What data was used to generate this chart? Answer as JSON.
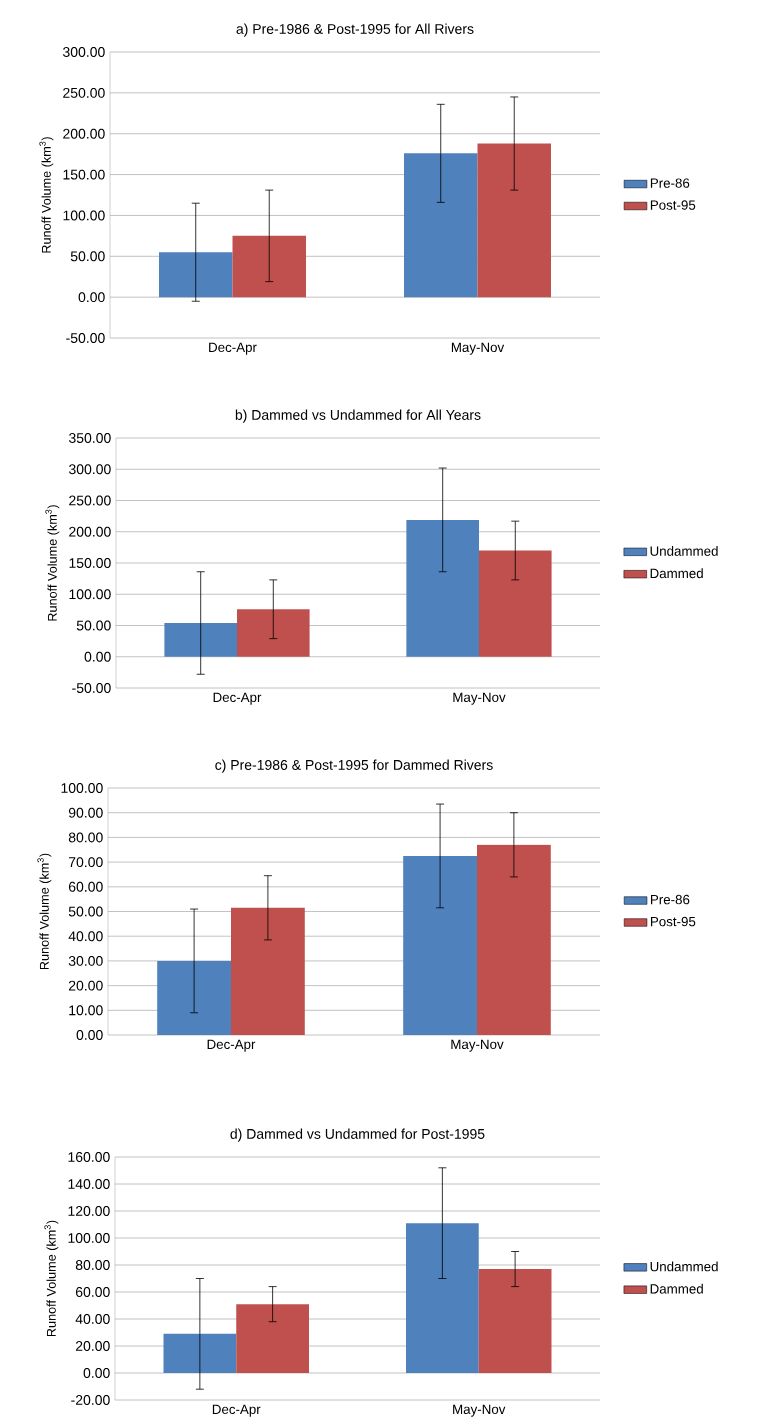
{
  "chart_data": [
    {
      "type": "bar",
      "title": "a) Pre-1986 & Post-1995 for All Rivers",
      "ylabel": "Runoff Volume (km$^{3}$)",
      "categories": [
        "Dec-Apr",
        "May-Nov"
      ],
      "series": [
        {
          "name": "Pre-86",
          "color": "#4f81bd",
          "values": [
            55,
            176
          ],
          "errors": [
            60,
            60
          ]
        },
        {
          "name": "Post-95",
          "color": "#c0504d",
          "values": [
            75,
            188
          ],
          "errors": [
            56,
            57
          ]
        }
      ],
      "ylim": [
        -50,
        300
      ],
      "yticks": [
        {
          "value": -50,
          "label": "-50.00"
        },
        {
          "value": 0,
          "label": "0.00"
        },
        {
          "value": 50,
          "label": "50.00"
        },
        {
          "value": 100,
          "label": "100.00"
        },
        {
          "value": 150,
          "label": "150.00"
        },
        {
          "value": 200,
          "label": "200.00"
        },
        {
          "value": 250,
          "label": "250.00"
        },
        {
          "value": 300,
          "label": "300.00"
        }
      ],
      "grid": "y",
      "legend": "right"
    },
    {
      "type": "bar",
      "title": "b) Dammed vs Undammed for All Years",
      "ylabel": "Runoff Volume (km$^{3}$)",
      "categories": [
        "Dec-Apr",
        "May-Nov"
      ],
      "series": [
        {
          "name": "Undammed",
          "color": "#4f81bd",
          "values": [
            54,
            219
          ],
          "errors": [
            82,
            83
          ]
        },
        {
          "name": "Dammed",
          "color": "#c0504d",
          "values": [
            76,
            170
          ],
          "errors": [
            47,
            47
          ]
        }
      ],
      "ylim": [
        -50,
        350
      ],
      "yticks": [
        {
          "value": -50,
          "label": "-50.00"
        },
        {
          "value": 0,
          "label": "0.00"
        },
        {
          "value": 50,
          "label": "50.00"
        },
        {
          "value": 100,
          "label": "100.00"
        },
        {
          "value": 150,
          "label": "150.00"
        },
        {
          "value": 200,
          "label": "200.00"
        },
        {
          "value": 250,
          "label": "250.00"
        },
        {
          "value": 300,
          "label": "300.00"
        },
        {
          "value": 350,
          "label": "350.00"
        }
      ],
      "grid": "y",
      "legend": "right"
    },
    {
      "type": "bar",
      "title": "c) Pre-1986 & Post-1995 for Dammed Rivers",
      "ylabel": "Runoff Volume (km$^{3}$)",
      "categories": [
        "Dec-Apr",
        "May-Nov"
      ],
      "series": [
        {
          "name": "Pre-86",
          "color": "#4f81bd",
          "values": [
            30,
            72.5
          ],
          "errors": [
            21,
            21
          ]
        },
        {
          "name": "Post-95",
          "color": "#c0504d",
          "values": [
            51.5,
            77
          ],
          "errors": [
            13,
            13
          ]
        }
      ],
      "ylim": [
        0,
        100
      ],
      "yticks": [
        {
          "value": 0,
          "label": "0.00"
        },
        {
          "value": 10,
          "label": "10.00"
        },
        {
          "value": 20,
          "label": "20.00"
        },
        {
          "value": 30,
          "label": "30.00"
        },
        {
          "value": 40,
          "label": "40.00"
        },
        {
          "value": 50,
          "label": "50.00"
        },
        {
          "value": 60,
          "label": "60.00"
        },
        {
          "value": 70,
          "label": "70.00"
        },
        {
          "value": 80,
          "label": "80.00"
        },
        {
          "value": 90,
          "label": "90.00"
        },
        {
          "value": 100,
          "label": "100.00"
        }
      ],
      "grid": "y",
      "legend": "right"
    },
    {
      "type": "bar",
      "title": "d) Dammed vs Undammed for Post-1995",
      "ylabel": "Runoff Volume (km$^{3}$)",
      "categories": [
        "Dec-Apr",
        "May-Nov"
      ],
      "series": [
        {
          "name": "Undammed",
          "color": "#4f81bd",
          "values": [
            29,
            111
          ],
          "errors": [
            41,
            41
          ]
        },
        {
          "name": "Dammed",
          "color": "#c0504d",
          "values": [
            51,
            77
          ],
          "errors": [
            13,
            13
          ]
        }
      ],
      "ylim": [
        -20,
        160
      ],
      "yticks": [
        {
          "value": -20,
          "label": "-20.00"
        },
        {
          "value": 0,
          "label": "0.00"
        },
        {
          "value": 20,
          "label": "20.00"
        },
        {
          "value": 40,
          "label": "40.00"
        },
        {
          "value": 60,
          "label": "60.00"
        },
        {
          "value": 80,
          "label": "80.00"
        },
        {
          "value": 100,
          "label": "100.00"
        },
        {
          "value": 120,
          "label": "120.00"
        },
        {
          "value": 140,
          "label": "140.00"
        },
        {
          "value": 160,
          "label": "160.00"
        }
      ],
      "grid": "y",
      "legend": "right"
    }
  ]
}
